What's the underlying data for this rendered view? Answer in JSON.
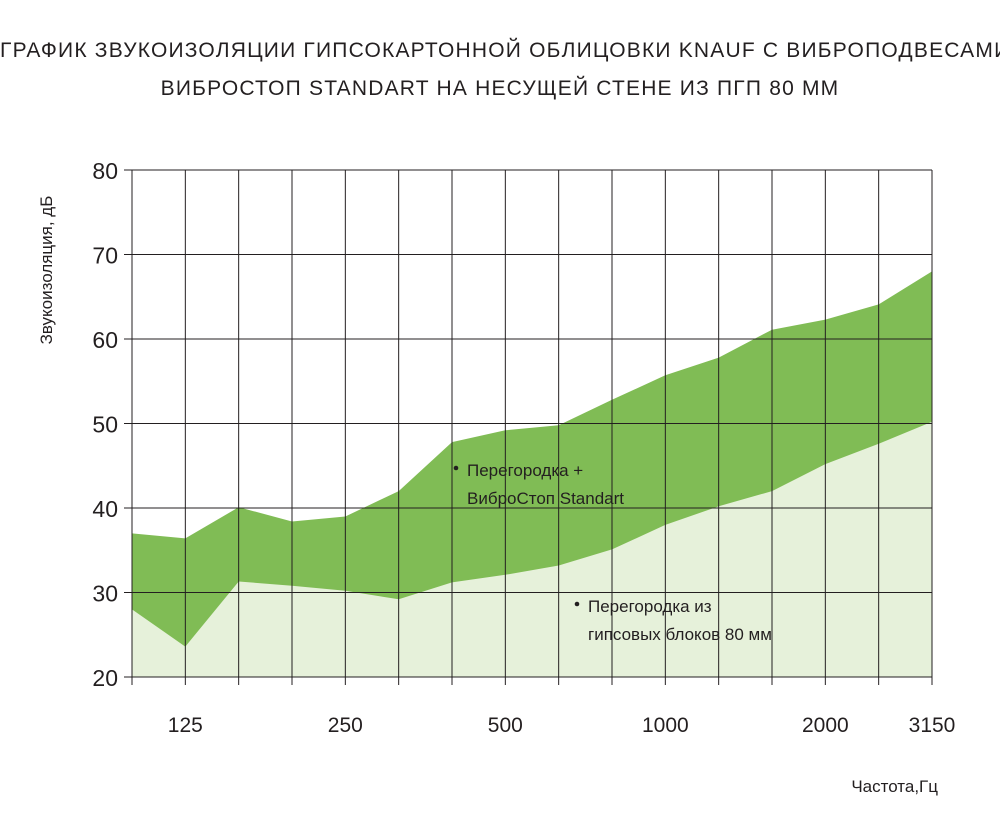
{
  "chart_data": {
    "type": "area",
    "title": "ГРАФИК ЗВУКОИЗОЛЯЦИИ ГИПСОКАРТОННОЙ ОБЛИЦОВКИ KNAUF С ВИБРОПОДВЕСАМИ",
    "subtitle": "ВИБРОСТОП  STANDART НА НЕСУЩЕЙ СТЕНЕ ИЗ ПГП 80 ММ",
    "xlabel": "Частота,Гц",
    "ylabel": "Звукоизоляция, дБ",
    "ylim": [
      20,
      80
    ],
    "yticks": [
      20,
      30,
      40,
      50,
      60,
      70,
      80
    ],
    "x": [
      100,
      125,
      160,
      200,
      250,
      315,
      400,
      500,
      630,
      800,
      1000,
      1250,
      1600,
      2000,
      2500,
      3150
    ],
    "xtick_labels": [
      "125",
      "250",
      "500",
      "1000",
      "2000",
      "3150"
    ],
    "xtick_values": [
      125,
      250,
      500,
      1000,
      2000,
      3150
    ],
    "grid": true,
    "series": [
      {
        "name": "Перегородка + ВиброСтоп Standart",
        "label_lines": [
          "Перегородка +",
          "ВиброСтоп Standart"
        ],
        "color": "#80bc55",
        "values": [
          37,
          36.4,
          40.1,
          38.4,
          39,
          42,
          47.8,
          49.2,
          49.8,
          52.8,
          55.7,
          57.8,
          61.1,
          62.3,
          64.1,
          68
        ]
      },
      {
        "name": "Перегородка из гипсовых блоков 80 мм",
        "label_lines": [
          "Перегородка из",
          "гипсовых блоков 80 мм"
        ],
        "color": "#e6f1da",
        "values": [
          28,
          23.6,
          31.3,
          30.8,
          30.2,
          29.2,
          31.2,
          32.1,
          33.2,
          35.1,
          38,
          40.2,
          42,
          45.2,
          47.6,
          50.2
        ]
      }
    ]
  }
}
